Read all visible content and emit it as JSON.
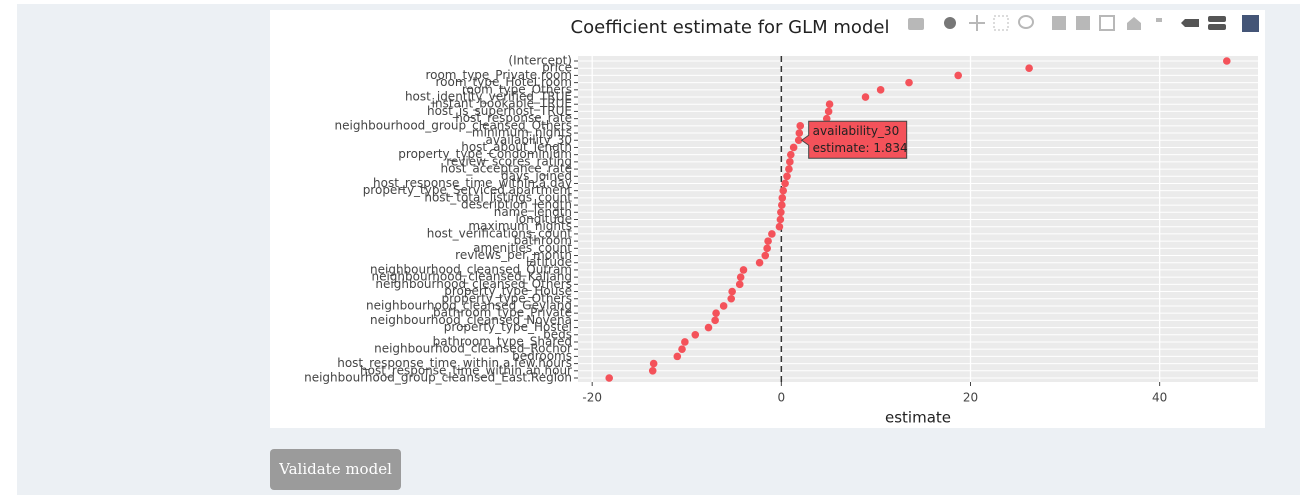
{
  "chart_data": {
    "type": "scatter",
    "title": "Coefficient estimate for GLM model",
    "x_label": "estimate",
    "categories": [
      "(Intercept)",
      "price",
      "room_type_Private.room",
      "room_type_Hotel.room",
      "room_type_Others",
      "host_identity_verified_TRUE",
      "instant_bookable_TRUE",
      "host_is_superhost_TRUE",
      "host_response_rate",
      "neighbourhood_group_cleansed_Others",
      "minimum_nights",
      "availability_30",
      "host_about_length",
      "property_type_Condominium",
      "review_scores_rating",
      "host_acceptance_rate",
      "days_joined",
      "host_response_time_within.a.day",
      "property_type_Serviced.apartment",
      "host_total_listings_count",
      "description_length",
      "name_length",
      "longitude",
      "maximum_nights",
      "host_verifications_count",
      "bathroom",
      "amenities_count",
      "reviews_per_month",
      "latitude",
      "neighbourhood_cleansed_Outram",
      "neighbourhood_cleansed_Kallang",
      "neighbourhood_cleansed_Others",
      "property_type_House",
      "property_type_Others",
      "neighbourhood_cleansed_Geylang",
      "bathroom_type_Private",
      "neighbourhood_cleansed_Novena",
      "property_type_Hostel",
      "beds",
      "bathroom_type_Shared",
      "neighbourhood_cleansed_Rochor",
      "bedrooms",
      "host_response_time_within.a.few.hours",
      "host_response_time_within.an.hour",
      "neighbourhood_group_cleansed_East.Region"
    ],
    "values": [
      47.1,
      26.2,
      18.7,
      13.5,
      10.5,
      8.9,
      5.1,
      5.0,
      4.8,
      2.0,
      1.9,
      1.834,
      1.3,
      1.0,
      0.9,
      0.8,
      0.6,
      0.4,
      0.2,
      0.1,
      0.05,
      -0.05,
      -0.1,
      -0.2,
      -1.0,
      -1.4,
      -1.5,
      -1.7,
      -2.3,
      -4.0,
      -4.3,
      -4.4,
      -5.2,
      -5.3,
      -6.1,
      -6.9,
      -7.0,
      -7.7,
      -9.1,
      -10.2,
      -10.5,
      -11.0,
      -13.5,
      -13.6,
      -18.2
    ],
    "color": "#f4525a",
    "xlim": [
      -21.5,
      50.4
    ],
    "xticks": [
      -20,
      0,
      20,
      40
    ],
    "grid": true,
    "zero_line": "dashed",
    "tooltip": {
      "label": "availability_30",
      "text": "estimate: 1.834"
    }
  },
  "button": {
    "label": "Validate model"
  }
}
